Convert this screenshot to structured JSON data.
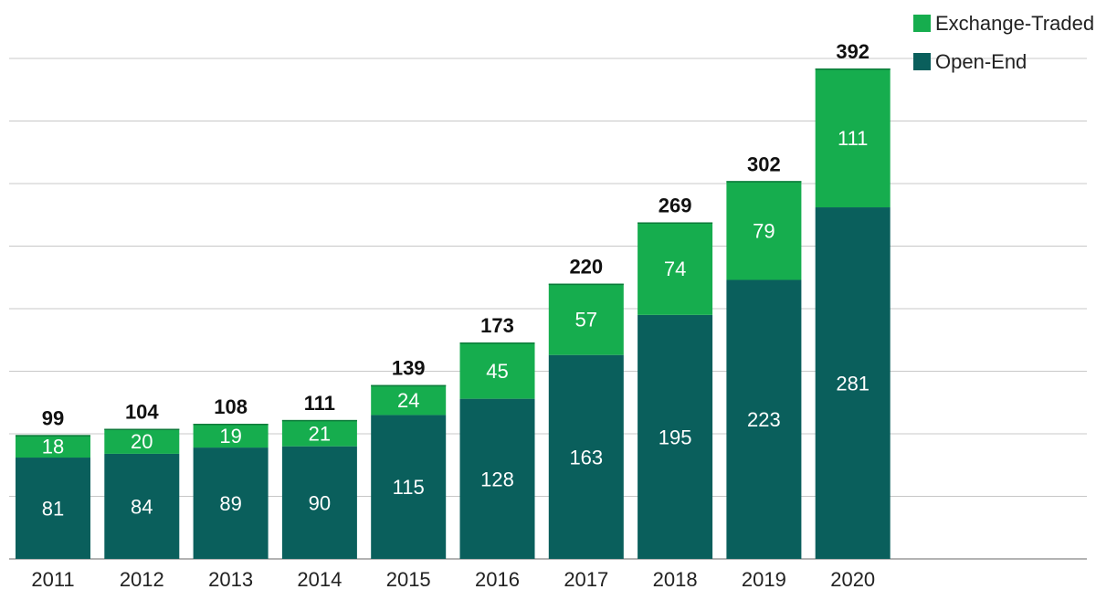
{
  "chart_data": {
    "type": "bar",
    "stacked": true,
    "title": "",
    "xlabel": "",
    "ylabel": "",
    "categories": [
      "2011",
      "2012",
      "2013",
      "2014",
      "2015",
      "2016",
      "2017",
      "2018",
      "2019",
      "2020"
    ],
    "series": [
      {
        "name": "Open-End",
        "color": "#0a5f5c",
        "values": [
          81,
          84,
          89,
          90,
          115,
          128,
          163,
          195,
          223,
          281
        ]
      },
      {
        "name": "Exchange-Traded",
        "color": "#16ad4e",
        "values": [
          18,
          20,
          19,
          21,
          24,
          45,
          57,
          74,
          79,
          111
        ]
      }
    ],
    "totals": [
      "99",
      "104",
      "108",
      "111",
      "139",
      "173",
      "220",
      "269",
      "302",
      "392"
    ],
    "ylim": [
      0,
      400
    ],
    "grid": true,
    "legend": {
      "position": "top-right",
      "order": [
        "Exchange-Traded",
        "Open-End"
      ]
    }
  }
}
